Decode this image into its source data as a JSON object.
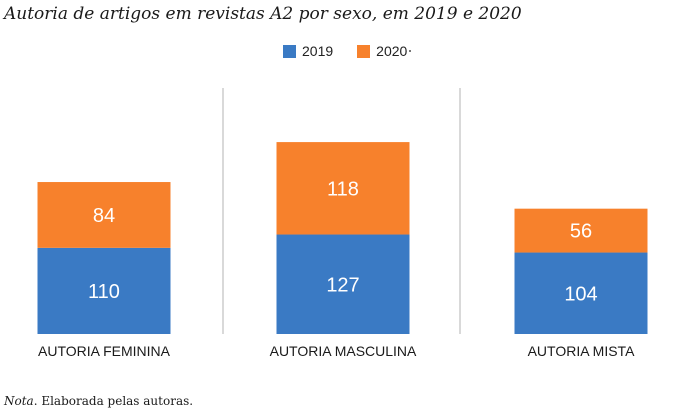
{
  "title": "Autoria de artigos em revistas A2 por sexo, em 2019 e 2020",
  "note": {
    "label": "Nota",
    "text": ". Elaborada pelas autoras."
  },
  "legend": [
    {
      "name": "2019",
      "color": "#3a7ac4"
    },
    {
      "name": "2020",
      "color": "#f7812c"
    }
  ],
  "chart_data": {
    "type": "bar",
    "stacked": true,
    "categories": [
      "AUTORIA FEMININA",
      "AUTORIA MASCULINA",
      "AUTORIA MISTA"
    ],
    "series": [
      {
        "name": "2019",
        "values": [
          110,
          127,
          104
        ],
        "color": "#3a7ac4"
      },
      {
        "name": "2020",
        "values": [
          84,
          118,
          56
        ],
        "color": "#f7812c"
      }
    ],
    "title": "Autoria de artigos em revistas A2 por sexo, em 2019 e 2020",
    "xlabel": "",
    "ylabel": "",
    "ylim": [
      0,
      245
    ],
    "grid": false,
    "legend_position": "top-center"
  }
}
